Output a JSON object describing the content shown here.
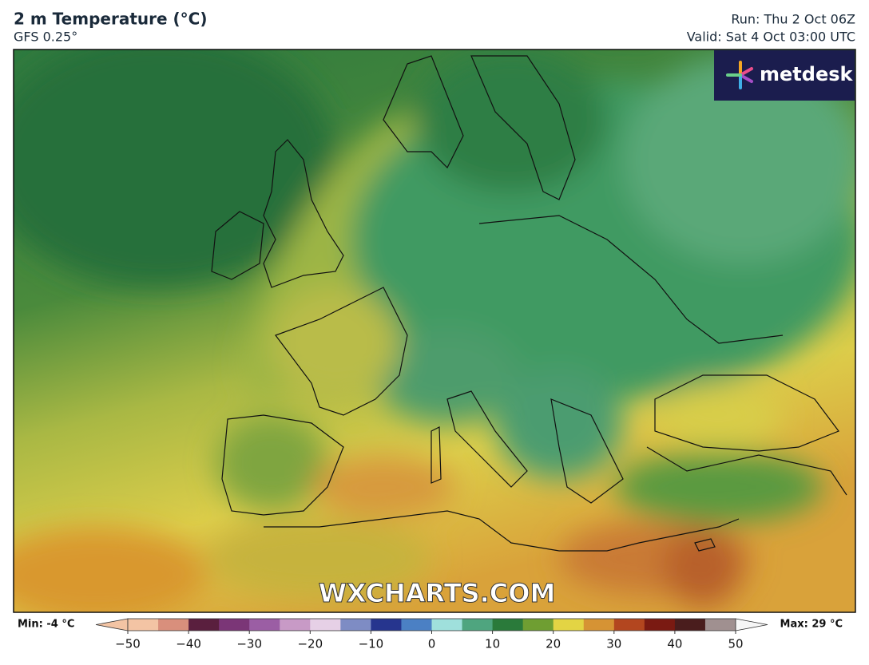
{
  "header": {
    "title": "2 m Temperature (°C)",
    "model": "GFS 0.25°",
    "run": "Run: Thu 2 Oct 06Z",
    "valid": "Valid: Sat 4 Oct 03:00 UTC"
  },
  "logo": "metdesk",
  "watermark": "WXCHARTS.COM",
  "legend": {
    "min": "Min: -4 °C",
    "max": "Max: 29 °C",
    "lim": [
      -50,
      50
    ],
    "ticks": [
      {
        "value": -50,
        "label": "−50"
      },
      {
        "value": -40,
        "label": "−40"
      },
      {
        "value": -30,
        "label": "−30"
      },
      {
        "value": -20,
        "label": "−20"
      },
      {
        "value": -10,
        "label": "−10"
      },
      0,
      10,
      20,
      30,
      40,
      50
    ],
    "colors": [
      "#f3c4a4",
      "#d98f7c",
      "#5a1f3e",
      "#7b3677",
      "#9b5ea4",
      "#c89ac6",
      "#e6d0e6",
      "#7e8cc4",
      "#26358e",
      "#4b80c4",
      "#9fe0dc",
      "#4fa57f",
      "#2a7a3a",
      "#6f9e32",
      "#e3d444",
      "#d69334",
      "#b3461f",
      "#7a1a12",
      "#4a1d1d",
      "#a09090"
    ]
  }
}
